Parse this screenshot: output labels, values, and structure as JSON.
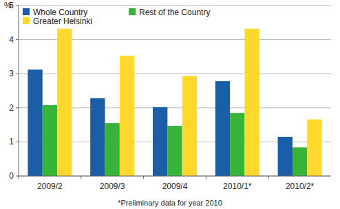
{
  "chart_data": {
    "type": "bar",
    "y_label": "%",
    "categories": [
      "2009/2",
      "2009/3",
      "2009/4",
      "2010/1*",
      "2010/2*"
    ],
    "series": [
      {
        "name": "Whole Country",
        "color": "#1b5ea8",
        "values": [
          3.12,
          2.28,
          2.02,
          2.78,
          1.15
        ]
      },
      {
        "name": "Rest of the Country",
        "color": "#38b538",
        "values": [
          2.08,
          1.55,
          1.47,
          1.85,
          0.84
        ]
      },
      {
        "name": "Greater Helsinki",
        "color": "#ffd82e",
        "values": [
          4.32,
          3.53,
          2.93,
          4.32,
          1.66
        ]
      }
    ],
    "ylim": [
      0,
      5
    ],
    "yticks": [
      0,
      1,
      2,
      3,
      4,
      5
    ],
    "grid": true,
    "legend": "top-left",
    "annotations": [
      "*Preliminary data for year 2010"
    ]
  }
}
